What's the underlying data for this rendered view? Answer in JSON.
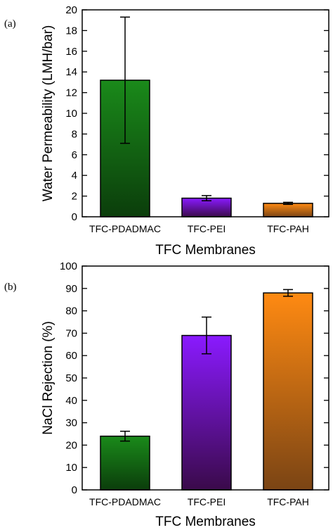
{
  "chart_data": [
    {
      "panel_label": "(a)",
      "type": "bar",
      "categories": [
        "TFC-PDADMAC",
        "TFC-PEI",
        "TFC-PAH"
      ],
      "values": [
        13.2,
        1.8,
        1.3
      ],
      "errors": [
        6.1,
        0.25,
        0.1
      ],
      "xlabel": "TFC Membranes",
      "ylabel": "Water Permeability (LMH/bar)",
      "ylim": [
        0,
        20
      ],
      "yticks": [
        0,
        2,
        4,
        6,
        8,
        10,
        12,
        14,
        16,
        18,
        20
      ],
      "grid": false,
      "colors": {
        "TFC-PDADMAC": {
          "top": "#1a8a1a",
          "bottom": "#0b3d0b"
        },
        "TFC-PEI": {
          "top": "#8a1aff",
          "bottom": "#3a0a4a"
        },
        "TFC-PAH": {
          "top": "#ff8a12",
          "bottom": "#7a4414"
        }
      }
    },
    {
      "panel_label": "(b)",
      "type": "bar",
      "categories": [
        "TFC-PDADMAC",
        "TFC-PEI",
        "TFC-PAH"
      ],
      "values": [
        24,
        69,
        88
      ],
      "errors": [
        2.2,
        8.2,
        1.5
      ],
      "xlabel": "TFC Membranes",
      "ylabel": "NaCl Rejection (%)",
      "ylim": [
        0,
        100
      ],
      "yticks": [
        0,
        10,
        20,
        30,
        40,
        50,
        60,
        70,
        80,
        90,
        100
      ],
      "grid": false,
      "colors": {
        "TFC-PDADMAC": {
          "top": "#1a8a1a",
          "bottom": "#0b3d0b"
        },
        "TFC-PEI": {
          "top": "#8a1aff",
          "bottom": "#3a0a4a"
        },
        "TFC-PAH": {
          "top": "#ff8a12",
          "bottom": "#7a4414"
        }
      }
    }
  ]
}
